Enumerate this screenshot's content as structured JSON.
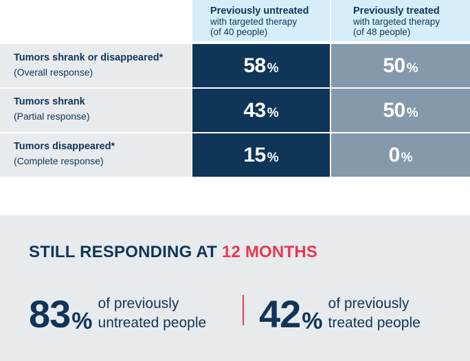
{
  "table": {
    "headers": [
      {
        "title": "Previously untreated",
        "line2": "with targeted therapy",
        "line3": "(of 40 people)"
      },
      {
        "title": "Previously treated",
        "line2": "with targeted therapy",
        "line3": "(of 48 people)"
      }
    ],
    "rows": [
      {
        "label": "Tumors shrank or disappeared*",
        "sublabel": "(Overall response)",
        "untreated": "58",
        "treated": "50"
      },
      {
        "label": "Tumors shrank",
        "sublabel": "(Partial response)",
        "untreated": "43",
        "treated": "50"
      },
      {
        "label": "Tumors disappeared*",
        "sublabel": "(Complete response)",
        "untreated": "15",
        "treated": "0"
      }
    ],
    "percent_sign": "%"
  },
  "panel": {
    "title_prefix": "STILL RESPONDING AT ",
    "title_accent": "12 MONTHS",
    "stats": [
      {
        "value": "83",
        "line1": "of previously",
        "line2": "untreated people"
      },
      {
        "value": "42",
        "line1": "of previously",
        "line2": "treated people"
      }
    ]
  },
  "colors": {
    "navy": "#0f3558",
    "slate": "#8499ab",
    "light_blue": "#d5eefa",
    "light_gray": "#e8ebee",
    "accent_red": "#e8384f"
  }
}
